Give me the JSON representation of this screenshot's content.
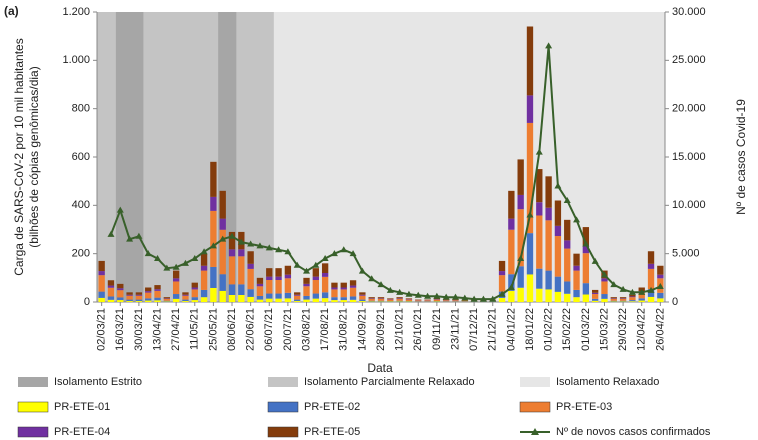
{
  "chart_data": {
    "type": "bar",
    "panel": "(a)",
    "xlabel": "Data",
    "ylabel": [
      "Carga de SARS-CoV-2 por 10 mil habitantes",
      "(bilhões de cópias genômicas/dia)"
    ],
    "y2label": "Nº de casos Covid-19",
    "categories": [
      "02/03/21",
      null,
      "16/03/21",
      null,
      "30/03/21",
      null,
      "13/04/21",
      null,
      "27/04/21",
      null,
      "11/05/21",
      null,
      "25/05/21",
      null,
      "08/06/21",
      null,
      "22/06/21",
      null,
      "06/07/21",
      null,
      "20/07/21",
      null,
      "03/08/21",
      null,
      "17/08/21",
      null,
      "31/08/21",
      null,
      "14/09/21",
      null,
      "28/09/21",
      null,
      "12/10/21",
      null,
      "26/10/21",
      null,
      "09/11/21",
      null,
      "23/11/21",
      null,
      "07/12/21",
      null,
      "21/12/21",
      null,
      "04/01/22",
      null,
      "18/01/22",
      null,
      "01/02/22",
      null,
      "15/02/22",
      null,
      "01/03/22",
      null,
      "15/03/22",
      null,
      "29/03/22",
      null,
      "12/04/22",
      null,
      "26/04/22"
    ],
    "ylim": [
      0,
      1200
    ],
    "yticks": [
      0,
      200,
      400,
      600,
      800,
      {
        "value": 1000,
        "label": "1.000"
      },
      {
        "value": 1200,
        "label": "1.200"
      }
    ],
    "y2lim": [
      0,
      30000
    ],
    "y2ticks": [
      0,
      {
        "value": 5000,
        "label": "5.000"
      },
      {
        "value": 10000,
        "label": "10.000"
      },
      {
        "value": 15000,
        "label": "15.000"
      },
      {
        "value": 20000,
        "label": "20.000"
      },
      {
        "value": 25000,
        "label": "25.000"
      },
      {
        "value": 30000,
        "label": "30.000"
      }
    ],
    "periods": [
      {
        "name": "Isolamento Estrito",
        "color": "#a6a6a6",
        "ranges": [
          [
            2,
            5
          ],
          [
            13,
            15
          ]
        ]
      },
      {
        "name": "Isolamento Parcialmente Relaxado",
        "color": "#c4c4c4",
        "ranges": [
          [
            0,
            2
          ],
          [
            5,
            13
          ],
          [
            15,
            19
          ]
        ]
      },
      {
        "name": "Isolamento Relaxado",
        "color": "#e6e6e6",
        "ranges": [
          [
            19,
            61
          ]
        ]
      }
    ],
    "series": [
      {
        "name": "PR-ETE-01",
        "color": "#ffff00",
        "values": [
          17,
          9,
          8,
          4,
          4,
          6,
          7,
          2,
          13,
          4,
          8,
          20,
          58,
          46,
          29,
          29,
          21,
          10,
          14,
          14,
          15,
          4,
          10,
          14,
          16,
          8,
          8,
          9,
          4,
          2,
          2,
          2,
          2,
          2,
          1,
          1,
          2,
          1,
          1,
          1,
          1,
          1,
          1,
          17,
          46,
          59,
          114,
          55,
          52,
          42,
          34,
          20,
          31,
          5,
          13,
          2,
          2,
          3,
          6,
          21,
          15
        ]
      },
      {
        "name": "PR-ETE-02",
        "color": "#4472c4",
        "values": [
          26,
          14,
          11,
          6,
          6,
          9,
          11,
          3,
          20,
          6,
          12,
          30,
          87,
          69,
          44,
          44,
          32,
          15,
          21,
          21,
          23,
          6,
          15,
          21,
          24,
          12,
          12,
          14,
          6,
          3,
          3,
          2,
          3,
          2,
          2,
          2,
          2,
          2,
          2,
          2,
          2,
          2,
          2,
          26,
          69,
          89,
          171,
          83,
          78,
          63,
          51,
          30,
          47,
          8,
          20,
          3,
          3,
          5,
          9,
          32,
          23
        ]
      },
      {
        "name": "PR-ETE-03",
        "color": "#ed7d31",
        "values": [
          68,
          36,
          30,
          16,
          16,
          24,
          28,
          8,
          52,
          16,
          32,
          80,
          232,
          184,
          116,
          116,
          84,
          40,
          56,
          56,
          60,
          16,
          40,
          56,
          64,
          32,
          32,
          36,
          16,
          8,
          8,
          6,
          8,
          6,
          4,
          4,
          6,
          4,
          4,
          4,
          4,
          4,
          4,
          68,
          184,
          236,
          456,
          220,
          208,
          168,
          136,
          80,
          124,
          20,
          52,
          8,
          8,
          12,
          24,
          84,
          60
        ]
      },
      {
        "name": "PR-ETE-04",
        "color": "#7030a0",
        "values": [
          17,
          9,
          8,
          4,
          4,
          6,
          7,
          2,
          13,
          4,
          8,
          20,
          58,
          46,
          29,
          29,
          21,
          10,
          14,
          14,
          15,
          4,
          10,
          14,
          16,
          8,
          8,
          9,
          4,
          2,
          2,
          2,
          2,
          2,
          1,
          1,
          2,
          1,
          1,
          1,
          1,
          1,
          1,
          17,
          46,
          59,
          114,
          55,
          52,
          42,
          34,
          20,
          31,
          5,
          13,
          2,
          2,
          3,
          6,
          21,
          15
        ]
      },
      {
        "name": "PR-ETE-05",
        "color": "#843c0c",
        "values": [
          42,
          22,
          18,
          10,
          10,
          15,
          17,
          5,
          32,
          10,
          20,
          50,
          145,
          115,
          72,
          72,
          52,
          25,
          35,
          35,
          37,
          10,
          25,
          35,
          40,
          20,
          20,
          22,
          10,
          5,
          5,
          3,
          5,
          3,
          2,
          2,
          3,
          2,
          2,
          2,
          2,
          2,
          2,
          42,
          115,
          147,
          285,
          137,
          130,
          105,
          85,
          50,
          77,
          12,
          32,
          5,
          5,
          7,
          15,
          52,
          37
        ]
      },
      {
        "name": "Nº de novos casos confirmados",
        "color": "#38602a",
        "axis": "y2",
        "values": [
          null,
          7000,
          9500,
          6500,
          6800,
          5000,
          4500,
          3500,
          3600,
          4000,
          4500,
          5200,
          5800,
          6500,
          6800,
          6200,
          6000,
          5800,
          5600,
          5400,
          5200,
          3800,
          3200,
          3800,
          4500,
          5000,
          5400,
          5000,
          3200,
          2400,
          1800,
          1200,
          1000,
          800,
          700,
          600,
          600,
          500,
          500,
          400,
          300,
          300,
          300,
          800,
          1500,
          4500,
          9000,
          15500,
          26500,
          12000,
          10500,
          8500,
          6000,
          4200,
          2800,
          1800,
          1300,
          1000,
          1000,
          1200,
          1600
        ]
      }
    ]
  }
}
